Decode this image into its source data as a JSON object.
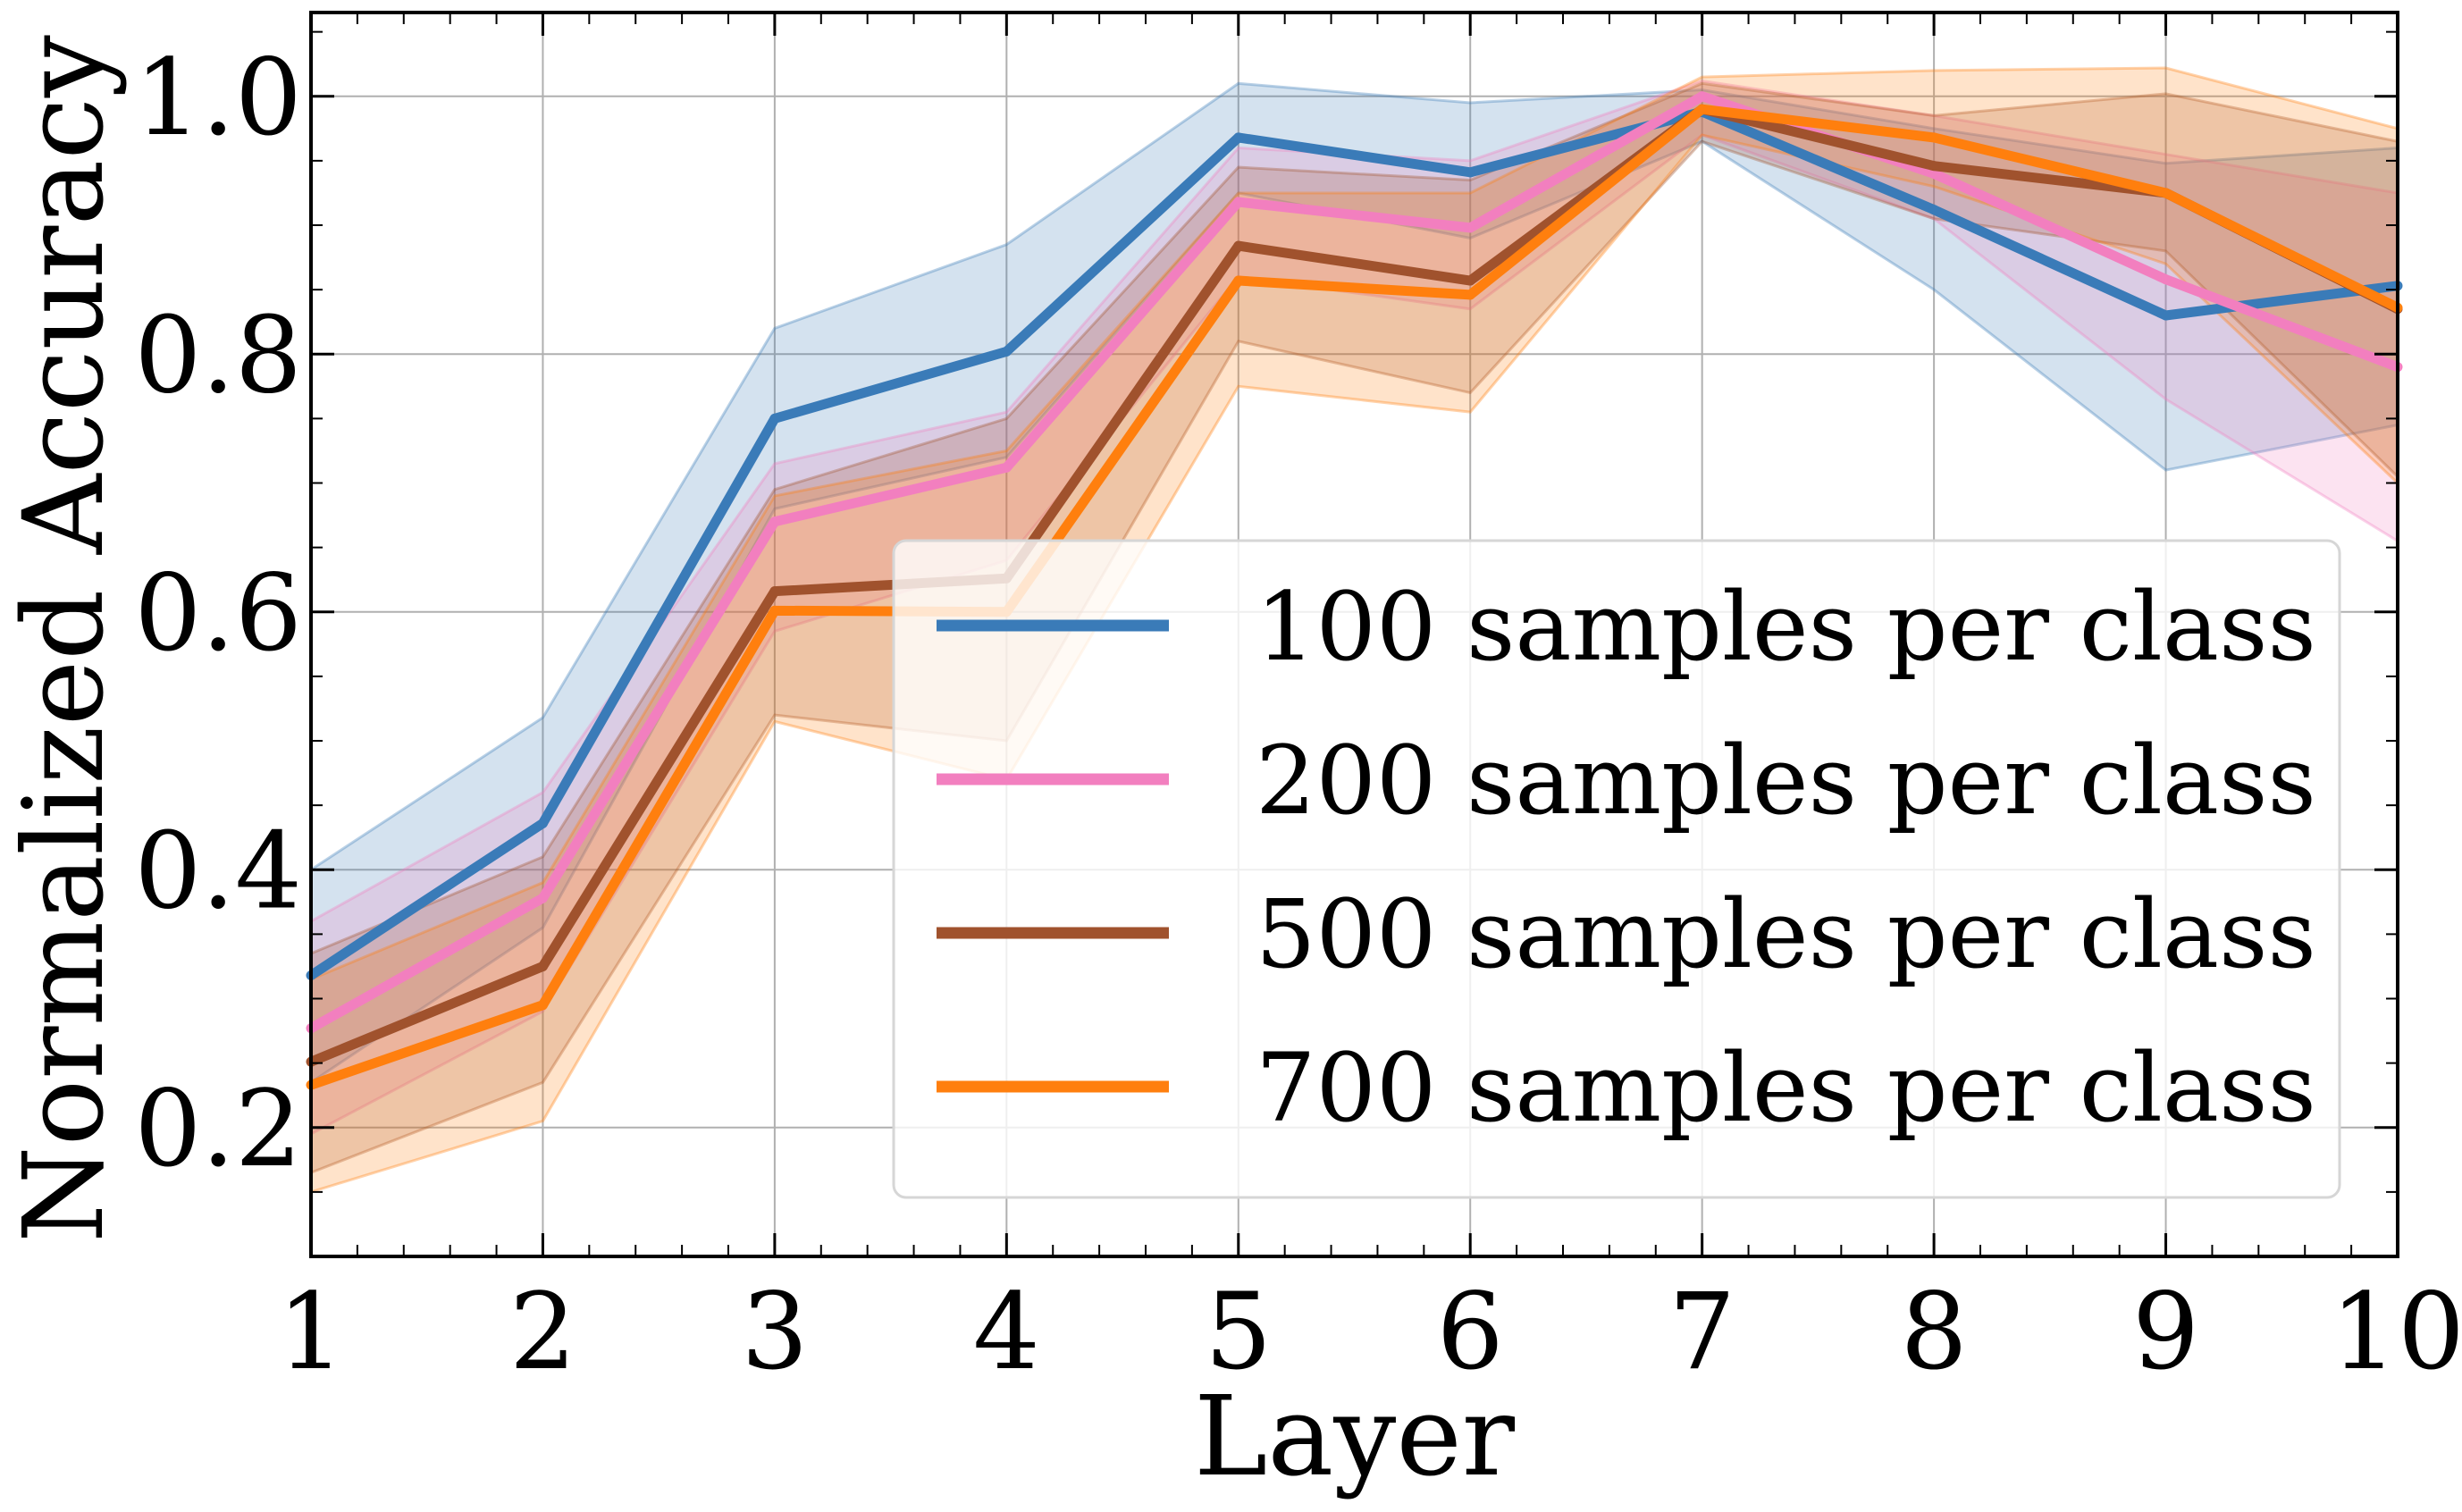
{
  "chart_data": {
    "type": "line",
    "title": "",
    "xlabel": "Layer",
    "ylabel": "Normalized Accuracy",
    "x": [
      1,
      2,
      3,
      4,
      5,
      6,
      7,
      8,
      9,
      10
    ],
    "xlim": [
      1,
      10
    ],
    "ylim": [
      0.1,
      1.065
    ],
    "xticks": [
      "1",
      "2",
      "3",
      "4",
      "5",
      "6",
      "7",
      "8",
      "9",
      "10"
    ],
    "yticks": [
      "0.2",
      "0.4",
      "0.6",
      "0.8",
      "1.0"
    ],
    "ytick_values": [
      0.2,
      0.4,
      0.6,
      0.8,
      1.0
    ],
    "grid": true,
    "legend_position": "lower-right",
    "series": [
      {
        "name": "100 samples per class",
        "color": "#3a7bb8",
        "values": [
          0.318,
          0.436,
          0.75,
          0.802,
          0.968,
          0.941,
          0.988,
          0.912,
          0.83,
          0.853
        ],
        "lower": [
          0.235,
          0.355,
          0.68,
          0.72,
          0.925,
          0.89,
          0.965,
          0.85,
          0.71,
          0.745
        ],
        "upper": [
          0.4,
          0.518,
          0.82,
          0.885,
          1.01,
          0.995,
          1.005,
          0.975,
          0.948,
          0.96
        ]
      },
      {
        "name": "200 samples per class",
        "color": "#f27fbf",
        "values": [
          0.277,
          0.378,
          0.67,
          0.712,
          0.918,
          0.898,
          1.0,
          0.94,
          0.858,
          0.79
        ],
        "lower": [
          0.195,
          0.29,
          0.585,
          0.64,
          0.86,
          0.835,
          0.97,
          0.905,
          0.765,
          0.655
        ],
        "upper": [
          0.36,
          0.46,
          0.715,
          0.755,
          0.96,
          0.95,
          1.012,
          0.985,
          0.955,
          0.925
        ]
      },
      {
        "name": "500 samples per class",
        "color": "#a0522d",
        "values": [
          0.251,
          0.325,
          0.616,
          0.626,
          0.884,
          0.857,
          0.99,
          0.946,
          0.925,
          0.835
        ],
        "lower": [
          0.165,
          0.235,
          0.52,
          0.5,
          0.81,
          0.77,
          0.965,
          0.905,
          0.88,
          0.705
        ],
        "upper": [
          0.335,
          0.41,
          0.695,
          0.75,
          0.945,
          0.935,
          1.01,
          0.985,
          1.002,
          0.965
        ]
      },
      {
        "name": "700 samples per class",
        "color": "#ff7f0e",
        "values": [
          0.233,
          0.295,
          0.601,
          0.6,
          0.857,
          0.846,
          0.99,
          0.968,
          0.925,
          0.836
        ],
        "lower": [
          0.15,
          0.205,
          0.515,
          0.47,
          0.775,
          0.755,
          0.97,
          0.93,
          0.87,
          0.7
        ],
        "upper": [
          0.315,
          0.39,
          0.69,
          0.725,
          0.925,
          0.925,
          1.015,
          1.02,
          1.022,
          0.975
        ]
      }
    ]
  }
}
